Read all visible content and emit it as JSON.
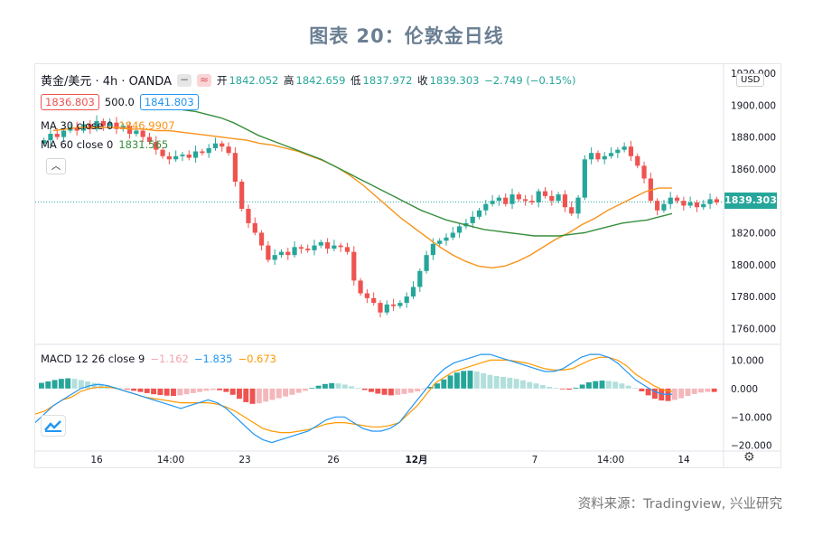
{
  "page_title": "图表 20：伦敦金日线",
  "source_note": "资料来源：Tradingview, 兴业研究",
  "header": {
    "symbol": "黄金/美元 · 4h · OANDA",
    "ohlc": [
      {
        "label": "开",
        "value": "1842.052"
      },
      {
        "label": "高",
        "value": "1842.659"
      },
      {
        "label": "低",
        "value": "1837.972"
      },
      {
        "label": "收",
        "value": "1839.303"
      }
    ],
    "change": "−2.749 (−0.15%)",
    "bid": "1836.803",
    "ask": "1841.803",
    "spread": "500.0",
    "ma30_label": "MA 30 close 0",
    "ma30_value": "1846.9907",
    "ma60_label": "MA 60 close 0",
    "ma60_value": "1831.565",
    "macd_label": "MACD 12 26 close 9",
    "macd_hist": "−1.162",
    "macd_line": "−1.835",
    "macd_signal": "−0.673",
    "currency": "USD",
    "last_price": "1839.303"
  },
  "colors": {
    "up": "#26a69a",
    "down": "#ef5350",
    "ma30": "#f7931a",
    "ma60": "#388e3c",
    "macd": "#2196f3",
    "signal": "#ff9800"
  },
  "chart_data": [
    {
      "type": "candlestick",
      "title": "黄金/美元 · 4h · OANDA",
      "ylim": [
        1750,
        1920
      ],
      "y_ticks": [
        "1760.000",
        "1780.000",
        "1800.000",
        "1820.000",
        "1840.000",
        "1860.000",
        "1880.000",
        "1900.000",
        "1920.000"
      ],
      "x_tick_labels": [
        "16",
        "14:00",
        "23",
        "26",
        "12月",
        "7",
        "14:00",
        "14"
      ],
      "close": [
        1878,
        1882,
        1880,
        1884,
        1886,
        1884,
        1888,
        1885,
        1890,
        1887,
        1889,
        1885,
        1887,
        1882,
        1884,
        1880,
        1877,
        1872,
        1868,
        1866,
        1868,
        1869,
        1867,
        1871,
        1870,
        1873,
        1876,
        1874,
        1870,
        1852,
        1835,
        1826,
        1820,
        1812,
        1803,
        1806,
        1808,
        1806,
        1811,
        1810,
        1809,
        1812,
        1814,
        1810,
        1812,
        1811,
        1808,
        1790,
        1782,
        1779,
        1776,
        1770,
        1775,
        1774,
        1776,
        1780,
        1786,
        1796,
        1806,
        1813,
        1815,
        1817,
        1820,
        1824,
        1826,
        1830,
        1834,
        1838,
        1840,
        1842,
        1838,
        1844,
        1841,
        1840,
        1839,
        1846,
        1843,
        1840,
        1844,
        1836,
        1832,
        1842,
        1866,
        1870,
        1866,
        1868,
        1870,
        1872,
        1874,
        1868,
        1862,
        1854,
        1840,
        1834,
        1838,
        1842,
        1840,
        1837,
        1839,
        1836,
        1838,
        1841,
        1839
      ],
      "series": [
        {
          "name": "MA 30 close 0",
          "values": [
            1884,
            1885,
            1886,
            1886,
            1886,
            1886,
            1885,
            1885,
            1884,
            1884,
            1883,
            1882,
            1881,
            1880,
            1879,
            1878,
            1876,
            1875,
            1873,
            1871,
            1868,
            1865,
            1861,
            1856,
            1850,
            1843,
            1836,
            1829,
            1823,
            1817,
            1811,
            1806,
            1802,
            1799,
            1798,
            1799,
            1802,
            1806,
            1811,
            1816,
            1820,
            1825,
            1829,
            1834,
            1838,
            1842,
            1846,
            1848,
            1848
          ]
        },
        {
          "name": "MA 60 close 0",
          "values": [
            1898,
            1897,
            1896,
            1894,
            1892,
            1889,
            1885,
            1881,
            1878,
            1875,
            1872,
            1869,
            1866,
            1862,
            1858,
            1854,
            1850,
            1846,
            1842,
            1838,
            1834,
            1831,
            1828,
            1826,
            1824,
            1822,
            1821,
            1820,
            1819,
            1818,
            1818,
            1818,
            1819,
            1820,
            1822,
            1824,
            1826,
            1827,
            1828,
            1830,
            1832
          ]
        }
      ]
    },
    {
      "type": "bar+line",
      "title": "MACD 12 26 close 9",
      "ylim": [
        -22,
        13
      ],
      "y_ticks": [
        "−20.000",
        "−10.000",
        "0.000",
        "10.000"
      ],
      "histogram": [
        2,
        2.5,
        3,
        3.4,
        3.6,
        3.4,
        3,
        2.5,
        2,
        1.5,
        1,
        0.6,
        0.2,
        -0.3,
        -0.8,
        -1.2,
        -1.6,
        -2,
        -2.3,
        -2.5,
        -2.6,
        -2.4,
        -2,
        -1.6,
        -1.2,
        -0.8,
        -0.5,
        -0.6,
        -1.2,
        -2.2,
        -3.6,
        -4.8,
        -5.4,
        -5.2,
        -4.6,
        -4,
        -3.4,
        -2.8,
        -2.2,
        -1.5,
        -0.8,
        0.2,
        1,
        1.6,
        1.9,
        1.8,
        1.4,
        0.8,
        0.2,
        -0.5,
        -1.2,
        -1.8,
        -2.2,
        -2.4,
        -2.2,
        -1.9,
        -1.5,
        -1,
        -0.3,
        0.6,
        1.8,
        3.2,
        4.6,
        5.6,
        6.2,
        6.3,
        6,
        5.4,
        4.8,
        4.4,
        4.1,
        3.8,
        3.4,
        2.9,
        2.3,
        1.8,
        1.2,
        0.6,
        0.2,
        -0.2,
        -0.4,
        0.3,
        1.4,
        2.2,
        2.6,
        2.8,
        2.7,
        2.4,
        1.8,
        1,
        0.2,
        -1,
        -2.4,
        -3.6,
        -4.2,
        -4.4,
        -4,
        -3.4,
        -2.6,
        -1.9,
        -1.4,
        -1.2,
        -1.2
      ],
      "series": [
        {
          "name": "MACD",
          "values": [
            -12,
            -9,
            -6,
            -4,
            -2,
            0,
            1,
            1.5,
            1,
            0,
            -1,
            -2,
            -3,
            -4,
            -5,
            -6,
            -7,
            -6,
            -5,
            -4,
            -5,
            -7,
            -10,
            -13,
            -16,
            -18,
            -19,
            -18,
            -17,
            -16,
            -15,
            -13,
            -11,
            -10,
            -10,
            -12,
            -14,
            -15,
            -15,
            -14,
            -12,
            -8,
            -4,
            0,
            4,
            7,
            9,
            10,
            11,
            12,
            12,
            11,
            10,
            9,
            8,
            7,
            6,
            6,
            7,
            9,
            11,
            12,
            12,
            11,
            9,
            6,
            3,
            1,
            -1,
            -2,
            -2
          ]
        },
        {
          "name": "Signal",
          "values": [
            -9,
            -8,
            -6,
            -4,
            -3,
            -1,
            0,
            0.5,
            0.5,
            0,
            -1,
            -2,
            -3,
            -3.5,
            -4,
            -4.5,
            -5,
            -5,
            -5,
            -5,
            -5.5,
            -6.5,
            -8,
            -10,
            -12,
            -14,
            -15,
            -15.5,
            -15.5,
            -15,
            -14.5,
            -13.5,
            -12.5,
            -12,
            -12,
            -12.5,
            -13,
            -13.5,
            -13.5,
            -13,
            -12,
            -9,
            -6,
            -2,
            2,
            4,
            6,
            7,
            8,
            9,
            10,
            10,
            10,
            9.5,
            9,
            8,
            7,
            6.5,
            6.5,
            7,
            8.5,
            10,
            11,
            11,
            10,
            8,
            5,
            3,
            1,
            -0.5,
            -1
          ]
        }
      ]
    }
  ]
}
